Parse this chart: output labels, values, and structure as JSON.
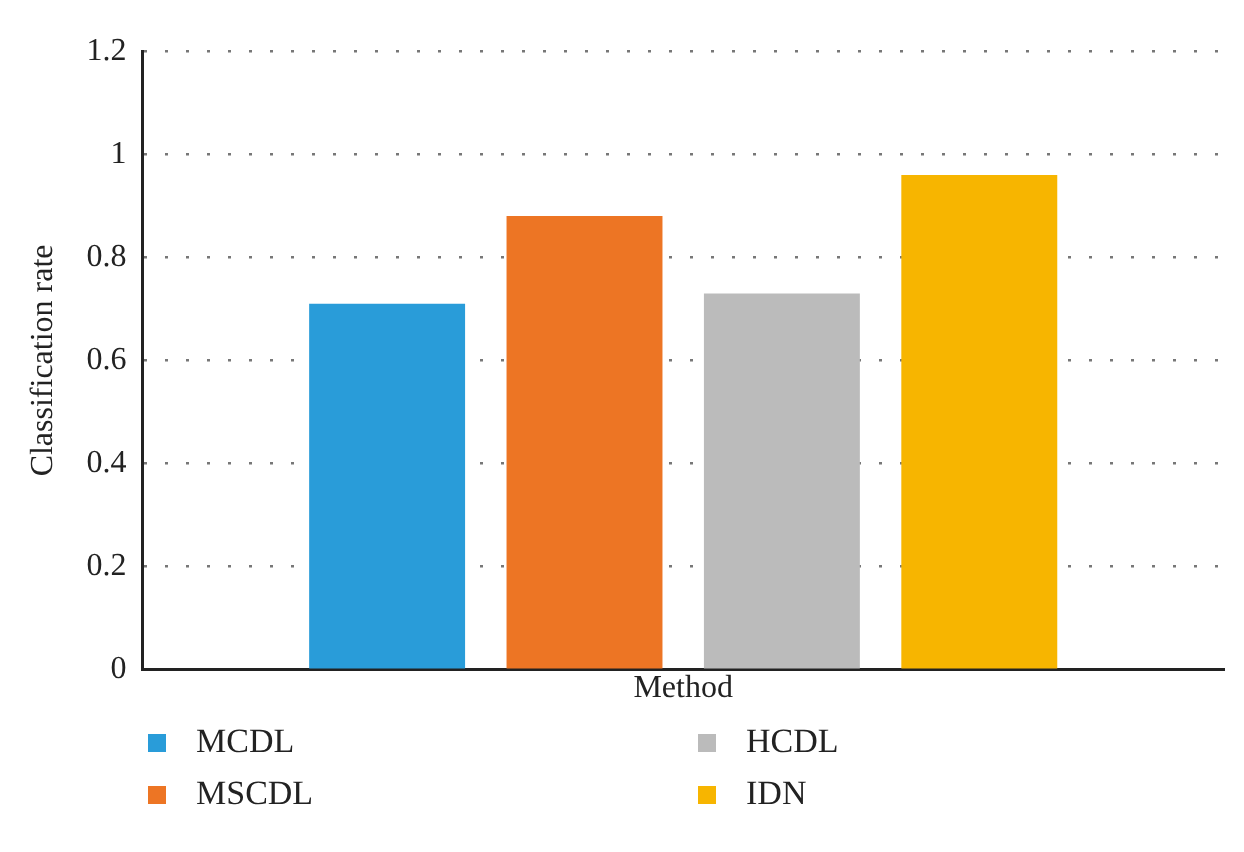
{
  "chart_data": {
    "type": "bar",
    "xlabel": "Method",
    "ylabel": "Classification rate",
    "categories": [
      null
    ],
    "series": [
      {
        "name": "MCDL",
        "color": "#299cd9",
        "values": [
          0.71
        ]
      },
      {
        "name": "MSCDL",
        "color": "#ed7524",
        "values": [
          0.88
        ]
      },
      {
        "name": "HCDL",
        "color": "#bbbbbb",
        "values": [
          0.73
        ]
      },
      {
        "name": "IDN",
        "color": "#f7b500",
        "values": [
          0.96
        ]
      }
    ],
    "ylim": [
      0,
      1.2
    ],
    "yticks": [
      0,
      0.2,
      0.4,
      0.6,
      0.8,
      1,
      1.2
    ],
    "grid": "y",
    "legend": "bottom",
    "tick_labels": "y"
  }
}
